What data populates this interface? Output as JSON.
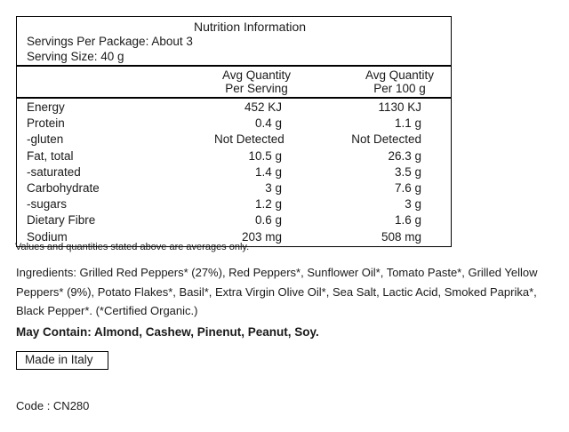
{
  "nutrition": {
    "title": "Nutrition Information",
    "servings_line": "Servings Per Package: About 3",
    "serving_size_line": "Serving Size: 40 g",
    "columns": {
      "per_serving": {
        "line1": "Avg Quantity",
        "line2": "Per Serving"
      },
      "per_100g": {
        "line1": "Avg Quantity",
        "line2": "Per 100 g"
      }
    },
    "rows": [
      {
        "label": "Energy",
        "per_serving": "452 KJ",
        "per_100g": "1130 KJ"
      },
      {
        "label": "Protein",
        "per_serving": "0.4 g",
        "per_100g": "1.1 g"
      },
      {
        "label": "-gluten",
        "per_serving": "Not Detected",
        "per_100g": "Not Detected"
      },
      {
        "label": "Fat, total",
        "per_serving": "10.5 g",
        "per_100g": "26.3 g"
      },
      {
        "label": "-saturated",
        "per_serving": "1.4 g",
        "per_100g": "3.5 g"
      },
      {
        "label": "Carbohydrate",
        "per_serving": "3 g",
        "per_100g": "7.6 g"
      },
      {
        "label": "-sugars",
        "per_serving": "1.2 g",
        "per_100g": "3 g"
      },
      {
        "label": "Dietary Fibre",
        "per_serving": "0.6 g",
        "per_100g": "1.6 g"
      },
      {
        "label": "Sodium",
        "per_serving": "203 mg",
        "per_100g": "508 mg"
      }
    ],
    "footnote": "Values and quantities stated above are averages only."
  },
  "details": {
    "ingredients": "Ingredients: Grilled Red Peppers* (27%), Red Peppers*, Sunflower Oil*, Tomato Paste*, Grilled Yellow Peppers* (9%), Potato Flakes*, Basil*, Extra Virgin Olive Oil*, Sea Salt, Lactic Acid, Smoked Paprika*, Black Pepper*. (*Certified Organic.)",
    "may_contain": "May Contain: Almond, Cashew, Pinenut, Peanut, Soy.",
    "origin": "Made in Italy",
    "code": "Code : CN280"
  },
  "colors": {
    "background": "#ffffff",
    "text": "#1a1a1a",
    "border": "#000000"
  }
}
